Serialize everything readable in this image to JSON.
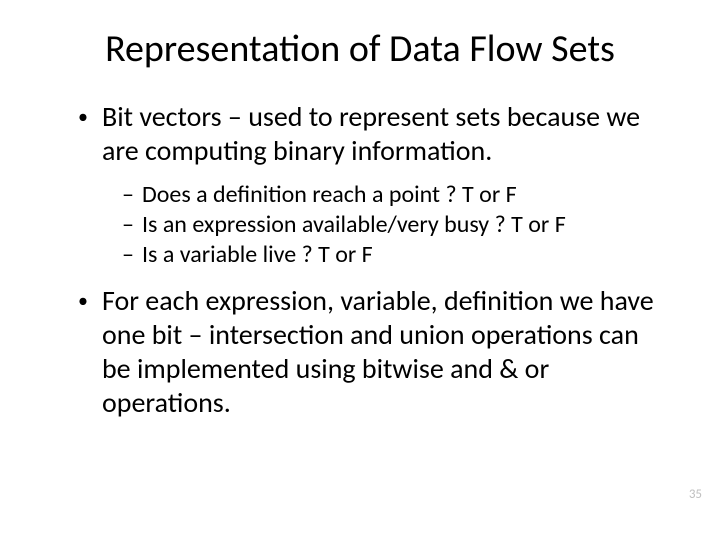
{
  "title": "Representation of Data Flow Sets",
  "bullets": [
    {
      "level": 1,
      "text": "Bit vectors  – used to represent sets because we are computing binary information."
    },
    {
      "level": 2,
      "text": "Does a definition reach a point ? T or F"
    },
    {
      "level": 2,
      "text": "Is an expression available/very busy ? T or F"
    },
    {
      "level": 2,
      "text": "Is a variable live ? T or F"
    },
    {
      "level": 1,
      "text": "For each expression, variable, definition  we have one bit – intersection and union operations can be implemented using bitwise and & or operations."
    }
  ],
  "pageNumber": "35",
  "colors": {
    "background": "#ffffff",
    "text": "#000000",
    "pageNumber": "#bfbfbf"
  },
  "fonts": {
    "title_size": 38,
    "l1_size": 28,
    "l2_size": 24
  }
}
